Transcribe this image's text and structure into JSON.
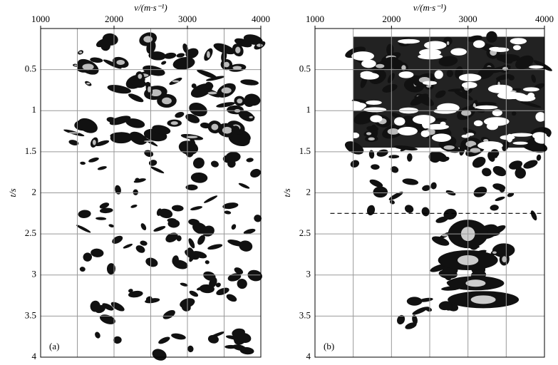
{
  "chart_data": [
    {
      "type": "image",
      "panel_label": "(a)",
      "x_label": "v/(m·s⁻¹)",
      "y_label": "t/s",
      "xlim": [
        1000,
        4000
      ],
      "xticks": [
        1000,
        2000,
        3000,
        4000
      ],
      "xgrid": [
        1500,
        2000,
        2500,
        3000,
        3500
      ],
      "ylim": [
        0,
        4
      ],
      "yticks": [
        0.5,
        1,
        1.5,
        2,
        2.5,
        3,
        3.5,
        4
      ]
    },
    {
      "type": "image",
      "panel_label": "(b)",
      "x_label": "v/(m·s⁻¹)",
      "y_label": "t/s",
      "xlim": [
        1000,
        4000
      ],
      "xticks": [
        1000,
        2000,
        3000,
        4000
      ],
      "xgrid": [
        1500,
        2000,
        2500,
        3000,
        3500
      ],
      "ylim": [
        0,
        4
      ],
      "yticks": [
        0.5,
        1,
        1.5,
        2,
        2.5,
        3,
        3.5,
        4
      ],
      "hline": 2.25
    }
  ]
}
